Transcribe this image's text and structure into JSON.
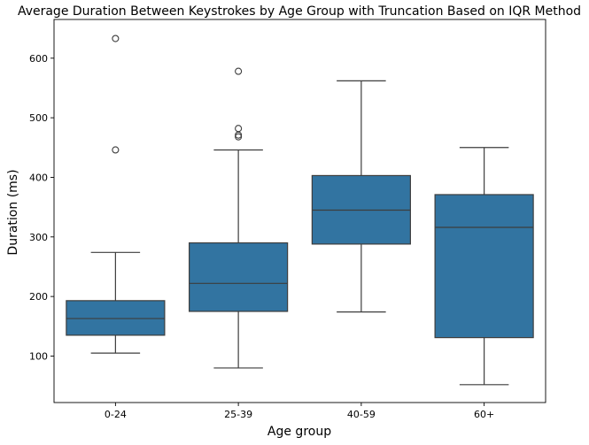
{
  "chart_data": {
    "type": "box",
    "title": "Average Duration Between Keystrokes by Age Group with Truncation Based on IQR Method",
    "xlabel": "Age group",
    "ylabel": "Duration (ms)",
    "ylim": [
      22,
      665
    ],
    "yticks": [
      100,
      200,
      300,
      400,
      500,
      600
    ],
    "grid": false,
    "color": "#3274a1",
    "line_color": "#3d3d3d",
    "categories": [
      "0-24",
      "25-39",
      "40-59",
      "60+"
    ],
    "boxes": [
      {
        "category": "0-24",
        "whisker_low": 105,
        "q1": 135,
        "median": 163,
        "q3": 193,
        "whisker_high": 274,
        "outliers": [
          446,
          633
        ]
      },
      {
        "category": "25-39",
        "whisker_low": 80,
        "q1": 175,
        "median": 222,
        "q3": 290,
        "whisker_high": 446,
        "outliers": [
          468,
          471,
          482,
          578
        ]
      },
      {
        "category": "40-59",
        "whisker_low": 174,
        "q1": 288,
        "median": 345,
        "q3": 403,
        "whisker_high": 562,
        "outliers": []
      },
      {
        "category": "60+",
        "whisker_low": 52,
        "q1": 131,
        "median": 316,
        "q3": 371,
        "whisker_high": 450,
        "outliers": []
      }
    ]
  }
}
